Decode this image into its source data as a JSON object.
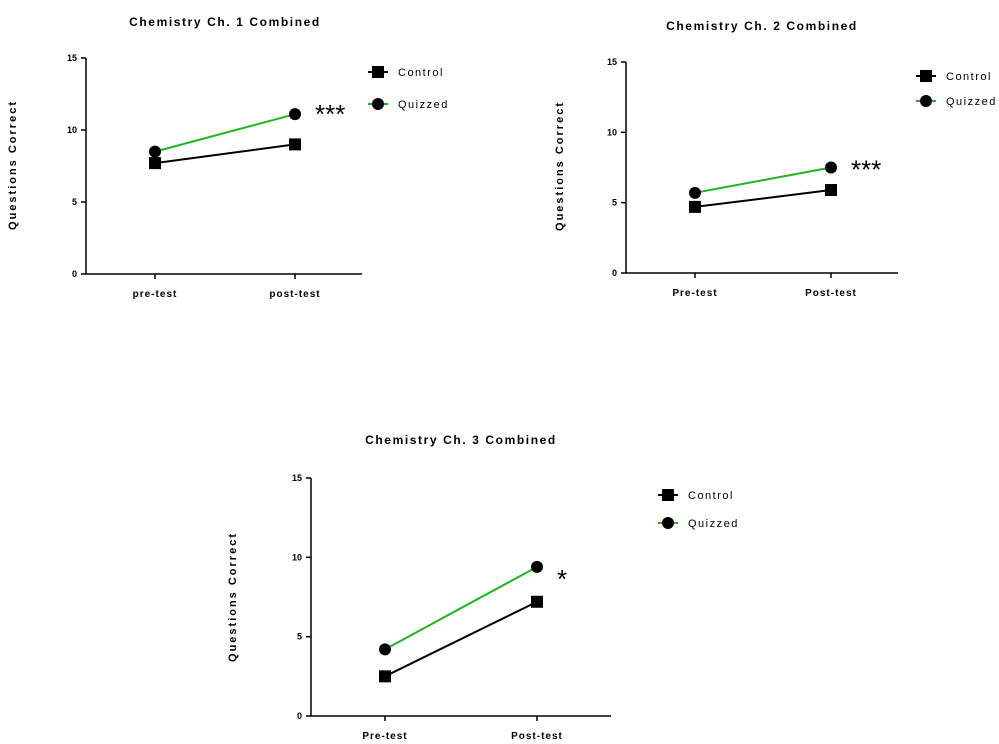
{
  "chart_data": [
    {
      "type": "line",
      "title": "Chemistry Ch. 1 Combined",
      "ylabel": "Questions Correct",
      "xlabel": "",
      "categories": [
        "pre-test",
        "post-test"
      ],
      "ylim": [
        0,
        15
      ],
      "yticks": [
        0,
        5,
        10,
        15
      ],
      "grid": false,
      "legend_position": "right",
      "series": [
        {
          "name": "Control",
          "values": [
            7.7,
            9.0
          ],
          "marker": "square",
          "color": "#000000"
        },
        {
          "name": "Quizzed",
          "values": [
            8.5,
            11.1
          ],
          "marker": "circle",
          "color": "#1fb51f"
        }
      ],
      "annotation": "***"
    },
    {
      "type": "line",
      "title": "Chemistry Ch. 2 Combined",
      "ylabel": "Questions Correct",
      "xlabel": "",
      "categories": [
        "Pre-test",
        "Post-test"
      ],
      "ylim": [
        0,
        15
      ],
      "yticks": [
        0,
        5,
        10,
        15
      ],
      "grid": false,
      "legend_position": "right",
      "series": [
        {
          "name": "Control",
          "values": [
            4.7,
            5.9
          ],
          "marker": "square",
          "color": "#000000"
        },
        {
          "name": "Quizzed",
          "values": [
            5.7,
            7.5
          ],
          "marker": "circle",
          "color": "#1fb51f"
        }
      ],
      "annotation": "***"
    },
    {
      "type": "line",
      "title": "Chemistry Ch. 3 Combined",
      "ylabel": "Questions Correct",
      "xlabel": "",
      "categories": [
        "Pre-test",
        "Post-test"
      ],
      "ylim": [
        0,
        15
      ],
      "yticks": [
        0,
        5,
        10,
        15
      ],
      "grid": false,
      "legend_position": "right",
      "series": [
        {
          "name": "Control",
          "values": [
            2.5,
            7.2
          ],
          "marker": "square",
          "color": "#000000"
        },
        {
          "name": "Quizzed",
          "values": [
            4.2,
            9.4
          ],
          "marker": "circle",
          "color": "#1fb51f"
        }
      ],
      "annotation": "*"
    }
  ]
}
